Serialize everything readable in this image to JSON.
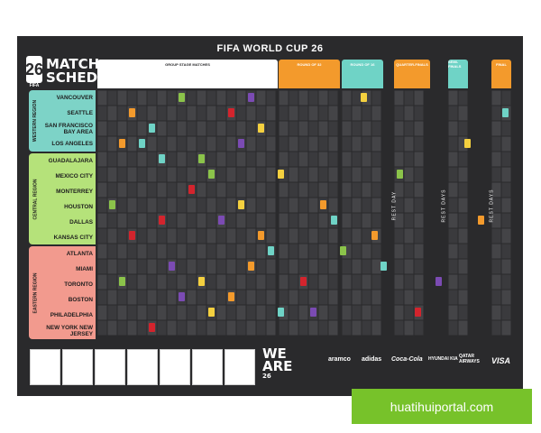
{
  "poster_title": "FIFA WORLD CUP 26",
  "logo": {
    "number": "26",
    "sub": "FIFA"
  },
  "schedule_title": [
    "MATCH",
    "SCHEDULE"
  ],
  "group_header": "GROUP STAGE MATCHES",
  "knockout_headers": [
    "ROUND OF 32",
    "ROUND OF 16",
    "QUARTER-FINALS",
    "SEMI-FINALS",
    "FINAL"
  ],
  "regions": [
    {
      "name": "WESTERN REGION",
      "color": "#7dd3c7",
      "cities": [
        "VANCOUVER",
        "SEATTLE",
        "SAN FRANCISCO BAY AREA",
        "LOS ANGELES"
      ]
    },
    {
      "name": "CENTRAL REGION",
      "color": "#b5e27a",
      "cities": [
        "GUADALAJARA",
        "MEXICO CITY",
        "MONTERREY",
        "HOUSTON",
        "DALLAS",
        "KANSAS CITY"
      ]
    },
    {
      "name": "EASTERN REGION",
      "color": "#f29a8e",
      "cities": [
        "ATLANTA",
        "MIAMI",
        "TORONTO",
        "BOSTON",
        "PHILADELPHIA",
        "NEW YORK NEW JERSEY"
      ]
    }
  ],
  "rest_days": [
    "REST DAY",
    "REST DAYS",
    "REST DAYS"
  ],
  "brand": [
    "WE",
    "ARE",
    "26"
  ],
  "sponsors": [
    "aramco",
    "adidas",
    "Coca-Cola",
    "HYUNDAI KIA",
    "QATAR AIRWAYS",
    "VISA"
  ],
  "watermark": "huatihuiportal.com",
  "colors": {
    "orange": "#f39a2c",
    "teal": "#6fd3c6",
    "green": "#8bc34a",
    "red": "#d3242d",
    "purple": "#7b4bb3",
    "yellow": "#f4d03f"
  }
}
